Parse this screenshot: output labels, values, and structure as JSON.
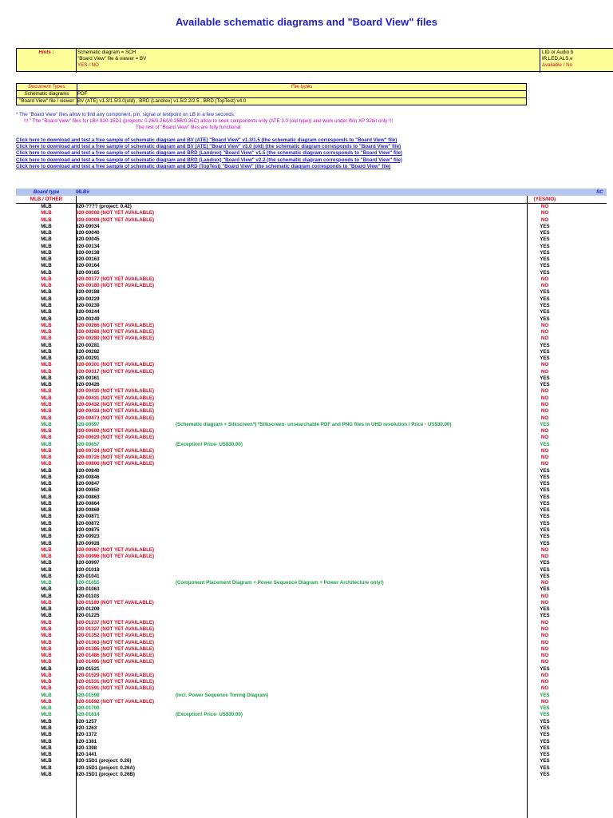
{
  "title": "Available schematic diagrams and \"Board View\" files",
  "hints": {
    "label": "Hints :",
    "lines": [
      "Schematic diagram = SCH",
      "\"Board View\" file & viewer = BV",
      "YES / NO"
    ],
    "right_lines": [
      "LID or Audio b",
      "IR,LED,ALS,e",
      "Available / No"
    ]
  },
  "doc_types": {
    "header_left": "Document Types",
    "header_right": "File types",
    "rows": [
      {
        "label": "Schematic diagrams",
        "value": "PDF"
      },
      {
        "label": "\"Board View\" file / viewer",
        "value": "BV (ATE) v1.3/1.5/3.0(old) , BRD (Landrex) v1.5/2.2/2.5 , BRD (TopTest) v4.0"
      }
    ]
  },
  "notes": [
    "* The \"Board View\" files allow to find any component, pin, signal or testpoint on LB in a few seconds.",
    "!!! \" The \"Board View\" files for LB# 820-15D1 (projects: 0.26/0.26A/0.26B/0.26C) allow to seek components only (ATE 3.0 (old type)) and work under Win XP 32bit only !!!",
    "The rest of \"Board View\" files are fully functional"
  ],
  "links": [
    "Click here to download and test a free sample of schematic diagram and BV (ATE) \"Board View\" v1.3/1.5 (the schematic diagram corresponds to \"Board View\" file)",
    "Click here to download and test a free sample of schematic diagram and BV (ATE) \"Board View\" v3.0 (old) (the schematic diagram corresponds to \"Board View\" file)",
    "Click here to download and test a free sample of schematic diagram and BRD (Landrex) \"Board View\" v1.5 (the schematic diagram corresponds to \"Board View\" file)",
    "Click here to download and test a free sample of schematic diagram and BRD (Landrex) \"Board View\" v2.2 (the schematic diagram corresponds to \"Board View\" file)",
    "Click here to download and test a free sample of schematic diagram and BRD (TopTest) \"Board View\" (the schematic diagram corresponds to \"Board View\" file)"
  ],
  "table": {
    "headers": {
      "type": "Board type",
      "mlb": "MLB#",
      "stat": "SC"
    },
    "subheaders": {
      "type": "MLB / OTHER",
      "stat": "(YES/NO)"
    },
    "rows": [
      {
        "t": "MLB",
        "m": "820-???? (project: 0.42)",
        "n": "",
        "s": "NO",
        "k": "black"
      },
      {
        "t": "MLB",
        "m": "820-00002 (NOT YET AVAILABLE)",
        "n": "",
        "s": "NO",
        "k": "red"
      },
      {
        "t": "MLB",
        "m": "820-00008 (NOT YET AVAILABLE)",
        "n": "",
        "s": "NO",
        "k": "red"
      },
      {
        "t": "MLB",
        "m": "820-00034",
        "n": "",
        "s": "YES",
        "k": "black"
      },
      {
        "t": "MLB",
        "m": "820-00040",
        "n": "",
        "s": "YES",
        "k": "black"
      },
      {
        "t": "MLB",
        "m": "820-00045",
        "n": "",
        "s": "YES",
        "k": "black"
      },
      {
        "t": "MLB",
        "m": "820-00134",
        "n": "",
        "s": "YES",
        "k": "black"
      },
      {
        "t": "MLB",
        "m": "820-00138",
        "n": "",
        "s": "YES",
        "k": "black"
      },
      {
        "t": "MLB",
        "m": "820-00163",
        "n": "",
        "s": "YES",
        "k": "black"
      },
      {
        "t": "MLB",
        "m": "820-00164",
        "n": "",
        "s": "YES",
        "k": "black"
      },
      {
        "t": "MLB",
        "m": "820-00165",
        "n": "",
        "s": "YES",
        "k": "black"
      },
      {
        "t": "MLB",
        "m": "820-00177 (NOT YET AVAILABLE)",
        "n": "",
        "s": "NO",
        "k": "red"
      },
      {
        "t": "MLB",
        "m": "820-00180 (NOT YET AVAILABLE)",
        "n": "",
        "s": "NO",
        "k": "red"
      },
      {
        "t": "MLB",
        "m": "820-00188",
        "n": "",
        "s": "YES",
        "k": "black"
      },
      {
        "t": "MLB",
        "m": "820-00229",
        "n": "",
        "s": "YES",
        "k": "black"
      },
      {
        "t": "MLB",
        "m": "820-00239",
        "n": "",
        "s": "YES",
        "k": "black"
      },
      {
        "t": "MLB",
        "m": "820-00244",
        "n": "",
        "s": "YES",
        "k": "black"
      },
      {
        "t": "MLB",
        "m": "820-00249",
        "n": "",
        "s": "YES",
        "k": "black"
      },
      {
        "t": "MLB",
        "m": "820-00266 (NOT YET AVAILABLE)",
        "n": "",
        "s": "NO",
        "k": "red"
      },
      {
        "t": "MLB",
        "m": "820-00268 (NOT YET AVAILABLE)",
        "n": "",
        "s": "NO",
        "k": "red"
      },
      {
        "t": "MLB",
        "m": "820-00280 (NOT YET AVAILABLE)",
        "n": "",
        "s": "NO",
        "k": "red"
      },
      {
        "t": "MLB",
        "m": "820-00281",
        "n": "",
        "s": "YES",
        "k": "black"
      },
      {
        "t": "MLB",
        "m": "820-00282",
        "n": "",
        "s": "YES",
        "k": "black"
      },
      {
        "t": "MLB",
        "m": "820-00291",
        "n": "",
        "s": "YES",
        "k": "black"
      },
      {
        "t": "MLB",
        "m": "820-00301 (NOT YET AVAILABLE)",
        "n": "",
        "s": "NO",
        "k": "red"
      },
      {
        "t": "MLB",
        "m": "820-00317 (NOT YET AVAILABLE)",
        "n": "",
        "s": "NO",
        "k": "red"
      },
      {
        "t": "MLB",
        "m": "820-00361",
        "n": "",
        "s": "YES",
        "k": "black"
      },
      {
        "t": "MLB",
        "m": "820-00426",
        "n": "",
        "s": "YES",
        "k": "black"
      },
      {
        "t": "MLB",
        "m": "820-00430 (NOT YET AVAILABLE)",
        "n": "",
        "s": "NO",
        "k": "red"
      },
      {
        "t": "MLB",
        "m": "820-00431 (NOT YET AVAILABLE)",
        "n": "",
        "s": "NO",
        "k": "red"
      },
      {
        "t": "MLB",
        "m": "820-00432 (NOT YET AVAILABLE)",
        "n": "",
        "s": "NO",
        "k": "red"
      },
      {
        "t": "MLB",
        "m": "820-00433 (NOT YET AVAILABLE)",
        "n": "",
        "s": "NO",
        "k": "red"
      },
      {
        "t": "MLB",
        "m": "820-00473 (NOT YET AVAILABLE)",
        "n": "",
        "s": "NO",
        "k": "red"
      },
      {
        "t": "MLB",
        "m": "820-00597",
        "n": "(Schematic diagram + Silkscreen*)  *Silkscreen- unsearchable PDF and PNG files in UHD resolution / Price - US$30.00)",
        "s": "YES",
        "k": "green"
      },
      {
        "t": "MLB",
        "m": "820-00609 (NOT YET AVAILABLE)",
        "n": "",
        "s": "NO",
        "k": "red"
      },
      {
        "t": "MLB",
        "m": "820-00629 (NOT YET AVAILABLE)",
        "n": "",
        "s": "NO",
        "k": "red"
      },
      {
        "t": "MLB",
        "m": "820-00657",
        "n": " (Exception! Price- US$30.00)",
        "s": "YES",
        "k": "green"
      },
      {
        "t": "MLB",
        "m": "820-00724 (NOT YET AVAILABLE)",
        "n": "",
        "s": "NO",
        "k": "red"
      },
      {
        "t": "MLB",
        "m": "820-00726 (NOT YET AVAILABLE)",
        "n": "",
        "s": "NO",
        "k": "red"
      },
      {
        "t": "MLB",
        "m": "820-00800 (NOT YET AVAILABLE)",
        "n": "",
        "s": "NO",
        "k": "red"
      },
      {
        "t": "MLB",
        "m": "820-00840",
        "n": "",
        "s": "YES",
        "k": "black"
      },
      {
        "t": "MLB",
        "m": "820-00846",
        "n": "",
        "s": "YES",
        "k": "black"
      },
      {
        "t": "MLB",
        "m": "820-00847",
        "n": "",
        "s": "YES",
        "k": "black"
      },
      {
        "t": "MLB",
        "m": "820-00850",
        "n": "",
        "s": "YES",
        "k": "black"
      },
      {
        "t": "MLB",
        "m": "820-00863",
        "n": "",
        "s": "YES",
        "k": "black"
      },
      {
        "t": "MLB",
        "m": "820-00864",
        "n": "",
        "s": "YES",
        "k": "black"
      },
      {
        "t": "MLB",
        "m": "820-00869",
        "n": "",
        "s": "YES",
        "k": "black"
      },
      {
        "t": "MLB",
        "m": "820-00871",
        "n": "",
        "s": "YES",
        "k": "black"
      },
      {
        "t": "MLB",
        "m": "820-00872",
        "n": "",
        "s": "YES",
        "k": "black"
      },
      {
        "t": "MLB",
        "m": "820-00875",
        "n": "",
        "s": "YES",
        "k": "black"
      },
      {
        "t": "MLB",
        "m": "820-00923",
        "n": "",
        "s": "YES",
        "k": "black"
      },
      {
        "t": "MLB",
        "m": "820-00928",
        "n": "",
        "s": "YES",
        "k": "black"
      },
      {
        "t": "MLB",
        "m": "820-00967 (NOT YET AVAILABLE)",
        "n": "",
        "s": "NO",
        "k": "red"
      },
      {
        "t": "MLB",
        "m": "820-00996 (NOT YET AVAILABLE)",
        "n": "",
        "s": "NO",
        "k": "red"
      },
      {
        "t": "MLB",
        "m": "820-00997",
        "n": "",
        "s": "YES",
        "k": "black"
      },
      {
        "t": "MLB",
        "m": "820-01018",
        "n": "",
        "s": "YES",
        "k": "black"
      },
      {
        "t": "MLB",
        "m": "820-01041",
        "n": "",
        "s": "YES",
        "k": "black"
      },
      {
        "t": "MLB",
        "m": "820-01055",
        "n": "(Component Placement Diagram + Power Sequence  Diagram + Power Architecture only!)",
        "s": "NO",
        "k": "green"
      },
      {
        "t": "MLB",
        "m": "820-01063",
        "n": "",
        "s": "YES",
        "k": "black"
      },
      {
        "t": "MLB",
        "m": "820-01103",
        "n": "",
        "s": "NO",
        "k": "black"
      },
      {
        "t": "MLB",
        "m": "820-01189 (NOT YET AVAILABLE)",
        "n": "",
        "s": "NO",
        "k": "red"
      },
      {
        "t": "MLB",
        "m": "820-01209",
        "n": "",
        "s": "YES",
        "k": "black"
      },
      {
        "t": "MLB",
        "m": "820-01225",
        "n": "",
        "s": "YES",
        "k": "black"
      },
      {
        "t": "MLB",
        "m": "820-01237 (NOT YET AVAILABLE)",
        "n": "",
        "s": "NO",
        "k": "red"
      },
      {
        "t": "MLB",
        "m": "820-01327 (NOT YET AVAILABLE)",
        "n": "",
        "s": "NO",
        "k": "red"
      },
      {
        "t": "MLB",
        "m": "820-01352 (NOT YET AVAILABLE)",
        "n": "",
        "s": "NO",
        "k": "red"
      },
      {
        "t": "MLB",
        "m": "820-01363 (NOT YET AVAILABLE)",
        "n": "",
        "s": "NO",
        "k": "red"
      },
      {
        "t": "MLB",
        "m": "820-01385 (NOT YET AVAILABLE)",
        "n": "",
        "s": "NO",
        "k": "red"
      },
      {
        "t": "MLB",
        "m": "820-01486 (NOT YET AVAILABLE)",
        "n": "",
        "s": "NO",
        "k": "red"
      },
      {
        "t": "MLB",
        "m": "820-01495 (NOT YET AVAILABLE)",
        "n": "",
        "s": "NO",
        "k": "red"
      },
      {
        "t": "MLB",
        "m": "820-01521",
        "n": "",
        "s": "YES",
        "k": "black"
      },
      {
        "t": "MLB",
        "m": "820-01529 (NOT YET AVAILABLE)",
        "n": "",
        "s": "NO",
        "k": "red"
      },
      {
        "t": "MLB",
        "m": "820-01531 (NOT YET AVAILABLE)",
        "n": "",
        "s": "NO",
        "k": "red"
      },
      {
        "t": "MLB",
        "m": "820-01591 (NOT YET AVAILABLE)",
        "n": "",
        "s": "NO",
        "k": "red"
      },
      {
        "t": "MLB",
        "m": "820-01598",
        "n": "(Incl. Power Sequence Timing Diagram)",
        "s": "YES",
        "k": "green"
      },
      {
        "t": "MLB",
        "m": "820-01692 (NOT YET AVAILABLE)",
        "n": "",
        "s": "NO",
        "k": "red"
      },
      {
        "t": "MLB",
        "m": "820-01700",
        "n": "",
        "s": "YES",
        "k": "green"
      },
      {
        "t": "MLB",
        "m": "820-01814",
        "n": "(Exception! Price- US$30.00)",
        "s": "YES",
        "k": "green"
      },
      {
        "t": "MLB",
        "m": "820-1257",
        "n": "",
        "s": "YES",
        "k": "black"
      },
      {
        "t": "MLB",
        "m": "820-1263",
        "n": "",
        "s": "YES",
        "k": "black"
      },
      {
        "t": "MLB",
        "m": "820-1372",
        "n": "",
        "s": "YES",
        "k": "black"
      },
      {
        "t": "MLB",
        "m": "820-1381",
        "n": "",
        "s": "YES",
        "k": "black"
      },
      {
        "t": "MLB",
        "m": "820-1398",
        "n": "",
        "s": "YES",
        "k": "black"
      },
      {
        "t": "MLB",
        "m": "820-1441",
        "n": "",
        "s": "YES",
        "k": "black"
      },
      {
        "t": "MLB",
        "m": "820-15D1 (project: 0.26)",
        "n": "",
        "s": "YES",
        "k": "black"
      },
      {
        "t": "MLB",
        "m": "820-15D1 (project: 0.26A)",
        "n": "",
        "s": "YES",
        "k": "black"
      },
      {
        "t": "MLB",
        "m": "820-15D1 (project: 0.26B)",
        "n": "",
        "s": "YES",
        "k": "black"
      }
    ]
  }
}
